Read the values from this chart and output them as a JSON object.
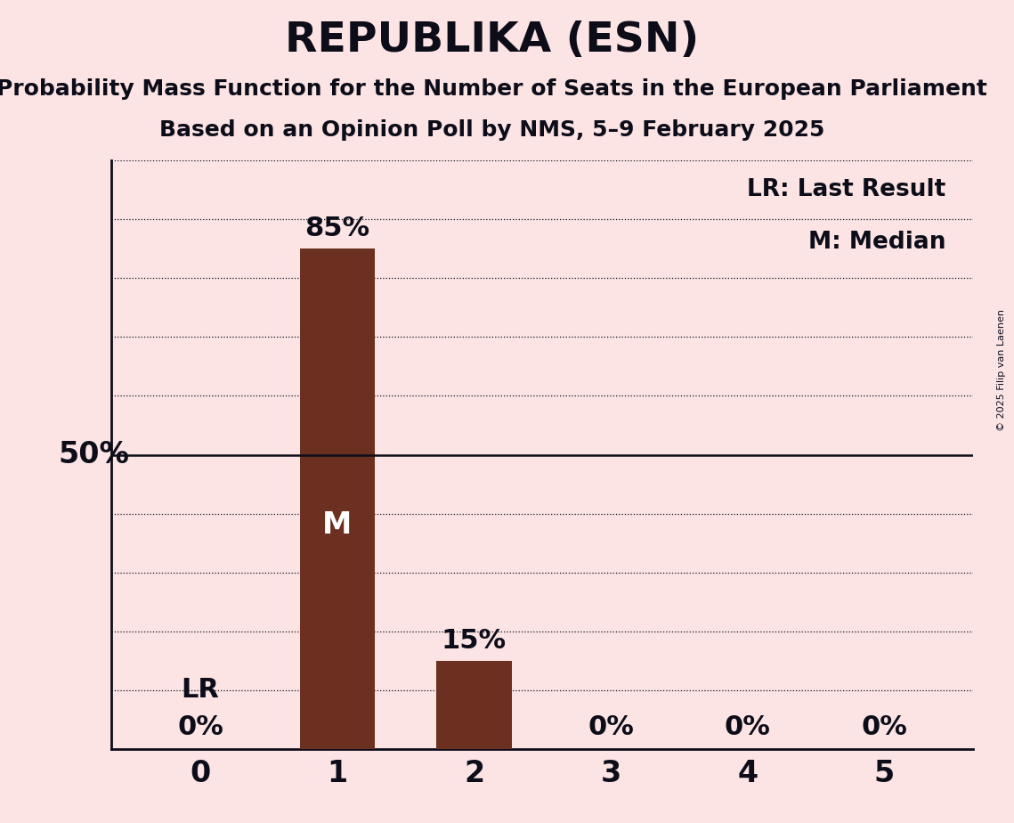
{
  "title": "REPUBLIKA (ESN)",
  "subtitle1": "Probability Mass Function for the Number of Seats in the European Parliament",
  "subtitle2": "Based on an Opinion Poll by NMS, 5–9 February 2025",
  "copyright": "© 2025 Filip van Laenen",
  "categories": [
    0,
    1,
    2,
    3,
    4,
    5
  ],
  "values": [
    0,
    85,
    15,
    0,
    0,
    0
  ],
  "bar_color": "#6b3020",
  "background_color": "#fce4e4",
  "median_bar": 1,
  "last_result_bar": 0,
  "median_label": "M",
  "last_result_label": "LR",
  "legend_lr": "LR: Last Result",
  "legend_m": "M: Median",
  "title_fontsize": 34,
  "subtitle_fontsize": 18,
  "bar_label_fontsize": 22,
  "inside_label_fontsize": 24,
  "tick_fontsize": 24,
  "legend_fontsize": 19,
  "ylabel_fontsize": 24,
  "copyright_fontsize": 8,
  "text_color": "#0d0d1a",
  "grid_color": "#0d0d1a",
  "ylim_max": 100,
  "ytick_step": 10,
  "bar_width": 0.55
}
